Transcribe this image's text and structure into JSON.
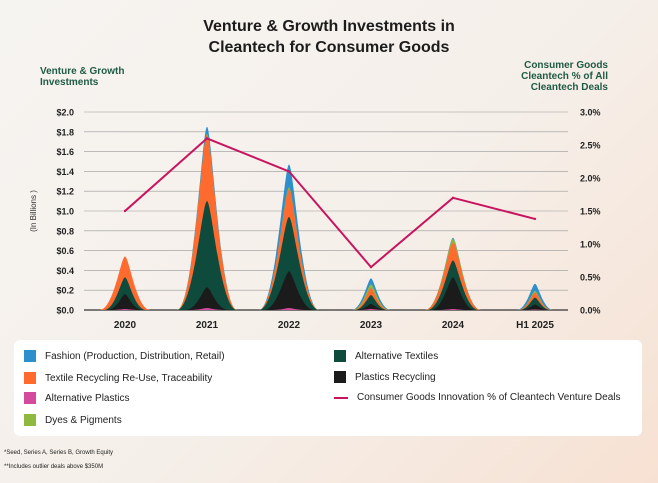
{
  "header": {
    "title_line1": "Venture & Growth Investments in",
    "title_line2": "Cleantech for Consumer Goods",
    "left_axis_title_line1": "Venture & Growth",
    "left_axis_title_line2": "Investments",
    "right_axis_title_line1": "Consumer Goods",
    "right_axis_title_line2": "Cleantech % of All",
    "right_axis_title_line3": "Cleantech Deals"
  },
  "chart_data": {
    "type": "area",
    "categories": [
      "2020",
      "2021",
      "2022",
      "2023",
      "2024",
      "H1 2025"
    ],
    "ylabel": "(In Billions )",
    "ylim": [
      0,
      2.0
    ],
    "yticks": [
      "$0.0",
      "$0.2",
      "$0.4",
      "$0.6",
      "$0.8",
      "$1.0",
      "$1.2",
      "$1.4",
      "$1.6",
      "$1.8",
      "$2.0"
    ],
    "y2lim": [
      0,
      3.0
    ],
    "y2ticks": [
      "0.0%",
      "0.5%",
      "1.0%",
      "1.5%",
      "2.0%",
      "2.5%",
      "3.0%"
    ],
    "grid": true,
    "series": [
      {
        "name": "Alternative Plastics",
        "color": "#d44a9c",
        "values": [
          0.01,
          0.02,
          0.02,
          0.01,
          0.01,
          0.005
        ]
      },
      {
        "name": "Plastics Recycling",
        "color": "#1b1b1b",
        "values": [
          0.15,
          0.21,
          0.37,
          0.05,
          0.32,
          0.05
        ]
      },
      {
        "name": "Alternative Textiles",
        "color": "#0f4b3c",
        "values": [
          0.17,
          0.87,
          0.55,
          0.09,
          0.17,
          0.07
        ]
      },
      {
        "name": "Textile Recycling Re-Use, Traceability",
        "color": "#ff6a2e",
        "values": [
          0.21,
          0.67,
          0.28,
          0.07,
          0.18,
          0.05
        ]
      },
      {
        "name": "Dyes & Pigments",
        "color": "#8fb83f",
        "values": [
          0.0,
          0.01,
          0.02,
          0.04,
          0.04,
          0.02
        ]
      },
      {
        "name": "Fashion (Production, Distribution, Retail)",
        "color": "#2d8fcc",
        "values": [
          0.0,
          0.07,
          0.23,
          0.06,
          0.01,
          0.07
        ]
      }
    ],
    "line_series": {
      "name": "Consumer Goods Innovation % of Cleantech Venture Deals",
      "color": "#c8145e",
      "values": [
        1.5,
        2.6,
        2.1,
        0.65,
        1.7,
        1.38
      ]
    }
  },
  "legend": {
    "items": [
      {
        "label": "Fashion (Production, Distribution, Retail)",
        "color": "#2d8fcc"
      },
      {
        "label": "Textile Recycling Re-Use, Traceability",
        "color": "#ff6a2e"
      },
      {
        "label": "Alternative Plastics",
        "color": "#d44a9c"
      },
      {
        "label": "Dyes & Pigments",
        "color": "#8fb83f"
      },
      {
        "label": "Alternative Textiles",
        "color": "#0f4b3c"
      },
      {
        "label": "Plastics Recycling",
        "color": "#1b1b1b"
      },
      {
        "label": "Consumer Goods Innovation % of Cleantech Venture Deals",
        "color": "#c8145e"
      }
    ]
  },
  "footnotes": {
    "note1": "*Seed, Series A, Series B, Growth Equity",
    "note2": "**Includes outlier deals above $350M"
  }
}
